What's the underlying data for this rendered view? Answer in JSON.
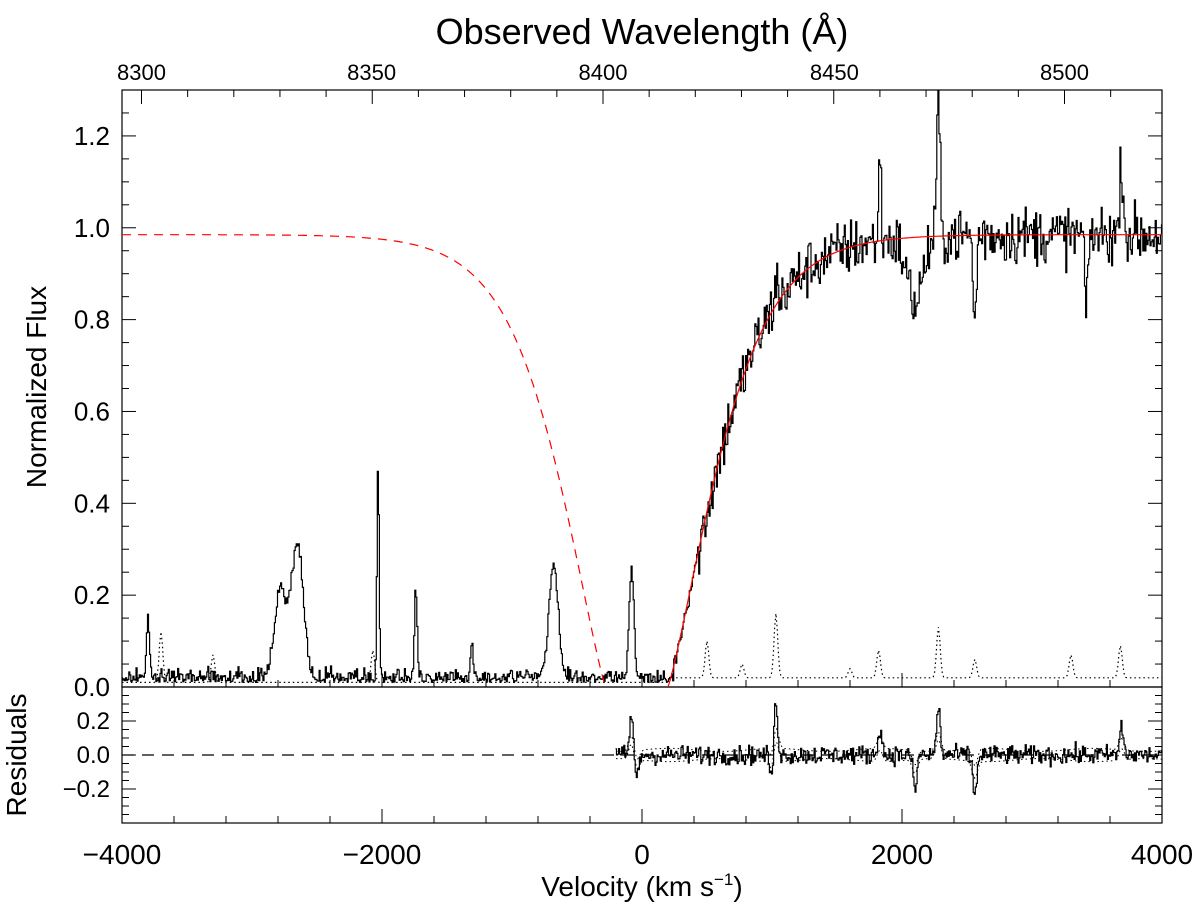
{
  "chart_data": [
    {
      "type": "line",
      "panel": "main",
      "title": "Observed Wavelength (Å)",
      "xlabel_main": "Velocity (km s",
      "xlabel_exp": "−1",
      "xlabel_close": ")",
      "ylabel": "Normalized Flux",
      "xlim": [
        -4000,
        4000
      ],
      "ylim": [
        0.0,
        1.3
      ],
      "x_ticks": [
        -4000,
        -2000,
        0,
        2000,
        4000
      ],
      "x_tick_labels": [
        "−4000",
        "−2000",
        "0",
        "2000",
        "4000"
      ],
      "y_ticks": [
        0.0,
        0.2,
        0.4,
        0.6,
        0.8,
        1.0,
        1.2
      ],
      "y_tick_labels": [
        "0.0",
        "0.2",
        "0.4",
        "0.6",
        "0.8",
        "1.0",
        "1.2"
      ],
      "top_axis": {
        "label": "Observed Wavelength (Å)",
        "ticks_wavelength": [
          8300,
          8350,
          8400,
          8450,
          8500
        ],
        "tick_labels": [
          "8300",
          "8350",
          "8400",
          "8450",
          "8500"
        ],
        "tick_velocity_positions": [
          -3850,
          -2080,
          -300,
          1480,
          3250
        ]
      },
      "series": [
        {
          "name": "observed spectrum",
          "style": "solid",
          "color": "#000000",
          "noise_sigma_low": 0.015,
          "noise_sigma_high": 0.045,
          "spikes": [
            {
              "v": -3800,
              "amp": 0.13,
              "w": 12
            },
            {
              "v": -2780,
              "amp": 0.19,
              "w": 45
            },
            {
              "v": -2650,
              "amp": 0.29,
              "w": 45
            },
            {
              "v": -2030,
              "amp": 0.47,
              "w": 8
            },
            {
              "v": -1740,
              "amp": 0.19,
              "w": 10
            },
            {
              "v": -1310,
              "amp": 0.08,
              "w": 10
            },
            {
              "v": -680,
              "amp": 0.25,
              "w": 35
            },
            {
              "v": -80,
              "amp": 0.24,
              "w": 18
            },
            {
              "v": 1030,
              "amp": 0.32,
              "w": 12
            },
            {
              "v": 1830,
              "amp": 0.18,
              "w": 10
            },
            {
              "v": 2280,
              "amp": 0.3,
              "w": 12
            },
            {
              "v": 3690,
              "amp": 0.17,
              "w": 12
            }
          ],
          "dips": [
            {
              "v": 1030,
              "amp": -0.26,
              "w": 12
            },
            {
              "v": 2100,
              "amp": -0.14,
              "w": 60
            },
            {
              "v": 2560,
              "amp": -0.2,
              "w": 12
            },
            {
              "v": 3420,
              "amp": -0.2,
              "w": 10
            }
          ]
        },
        {
          "name": "model fit",
          "style": "solid",
          "color": "#ff0000",
          "profile": {
            "v_start": 200,
            "v_mid": 500,
            "width": 700,
            "continuum": 0.985
          }
        },
        {
          "name": "mirrored model (blue side)",
          "style": "dashed",
          "color": "#ff0000",
          "profile": {
            "v_start": -280,
            "v_mid": -580,
            "width": 700,
            "continuum": 0.985
          }
        },
        {
          "name": "error / template",
          "style": "dotted",
          "color": "#000000",
          "baseline": 0.02,
          "bumps": [
            {
              "v": -3700,
              "amp": 0.11
            },
            {
              "v": -3300,
              "amp": 0.06
            },
            {
              "v": -2070,
              "amp": 0.07
            },
            {
              "v": 500,
              "amp": 0.08
            },
            {
              "v": 770,
              "amp": 0.03
            },
            {
              "v": 1030,
              "amp": 0.14
            },
            {
              "v": 1600,
              "amp": 0.02
            },
            {
              "v": 1820,
              "amp": 0.06
            },
            {
              "v": 2280,
              "amp": 0.11
            },
            {
              "v": 2560,
              "amp": 0.04
            },
            {
              "v": 3300,
              "amp": 0.05
            },
            {
              "v": 3680,
              "amp": 0.07
            }
          ]
        }
      ]
    },
    {
      "type": "line",
      "panel": "residuals",
      "ylabel": "Residuals",
      "xlim": [
        -4000,
        4000
      ],
      "ylim": [
        -0.4,
        0.4
      ],
      "y_ticks": [
        -0.2,
        0.0,
        0.2
      ],
      "y_tick_labels": [
        "−0.2",
        "0.0",
        "0.2"
      ],
      "reference_line": 0.0,
      "series": [
        {
          "name": "residuals",
          "style": "solid",
          "color": "#000000",
          "v_start": -200,
          "noise_sigma": 0.04
        },
        {
          "name": "error envelope",
          "style": "dotted",
          "color": "#000000",
          "level": 0.03
        }
      ],
      "features": [
        {
          "v": -80,
          "amp": 0.24
        },
        {
          "v": -40,
          "amp": -0.15
        },
        {
          "v": 1030,
          "amp": 0.33
        },
        {
          "v": 1000,
          "amp": -0.15
        },
        {
          "v": 1830,
          "amp": 0.17
        },
        {
          "v": 2100,
          "amp": -0.21
        },
        {
          "v": 2280,
          "amp": 0.28
        },
        {
          "v": 2560,
          "amp": -0.25
        },
        {
          "v": 3690,
          "amp": 0.17
        }
      ]
    }
  ]
}
